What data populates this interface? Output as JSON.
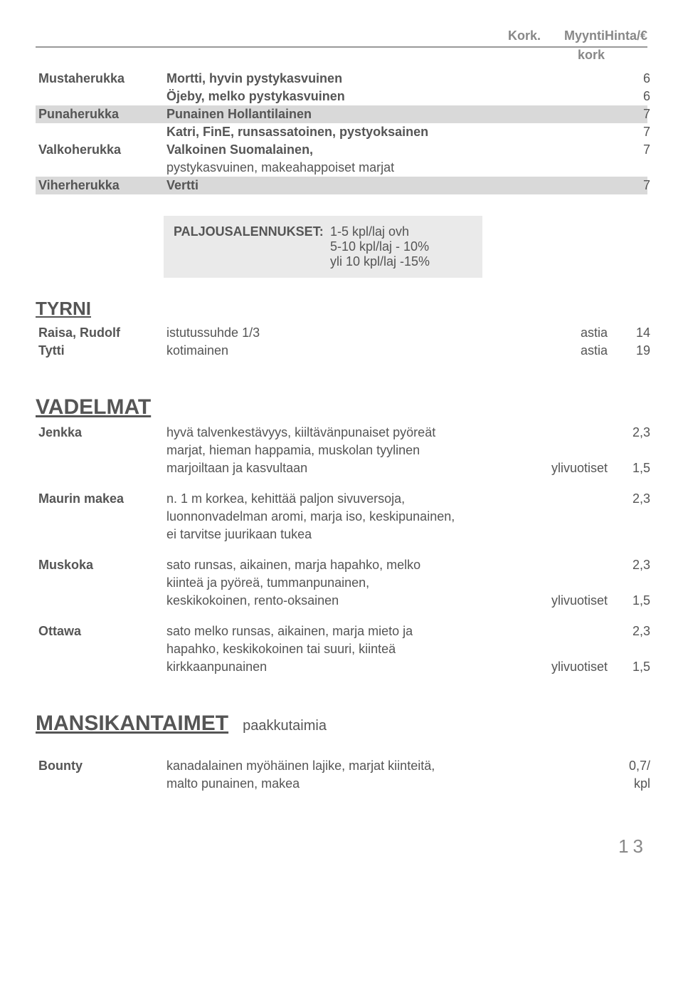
{
  "header": {
    "col3": "Kork.",
    "col4": "Myynti",
    "col5": "Hinta/€",
    "sub4": "kork"
  },
  "herukat": [
    {
      "shaded": false,
      "name": "Mustaherukka",
      "desc": "Mortti, hyvin pystykasvuinen",
      "c5": "6",
      "bold": true
    },
    {
      "shaded": false,
      "name": "",
      "desc": "Öjeby, melko pystykasvuinen",
      "c5": "6",
      "bold": true
    },
    {
      "shaded": true,
      "name": "Punaherukka",
      "desc": "Punainen Hollantilainen",
      "c5": "7",
      "bold": true
    },
    {
      "shaded": false,
      "name": "",
      "desc": "Katri, FinE, runsassatoinen, pystyoksainen",
      "c5": "7",
      "bold": true
    },
    {
      "shaded": false,
      "name": "Valkoherukka",
      "desc": "Valkoinen Suomalainen,",
      "c5": "7",
      "bold": true
    },
    {
      "shaded": false,
      "name": "",
      "desc": "pystykasvuinen, makeahappoiset marjat",
      "c5": "",
      "bold": false
    },
    {
      "shaded": true,
      "name": "Viherherukka",
      "desc": "Vertti",
      "c5": "7",
      "bold": true
    }
  ],
  "discount": {
    "label": "PALJOUSALENNUKSET:",
    "l1": "1-5 kpl/laj ovh",
    "l2": "5-10 kpl/laj - 10%",
    "l3": "yli 10 kpl/laj -15%"
  },
  "tyrni": {
    "title": "TYRNI",
    "rows": [
      {
        "name": "Raisa, Rudolf",
        "desc": "istutussuhde 1/3",
        "c4": "astia",
        "c5": "14"
      },
      {
        "name": "Tytti",
        "desc": "kotimainen",
        "c4": "astia",
        "c5": "19"
      }
    ]
  },
  "vadelmat": {
    "title": "VADELMAT",
    "rows": [
      {
        "name": "Jenkka",
        "desc": "hyvä talvenkestävyys, kiiltävänpunaiset pyöreät",
        "c4": "",
        "c5": "2,3"
      },
      {
        "name": "",
        "desc": "marjat, hieman happamia, muskolan tyylinen",
        "c4": "",
        "c5": ""
      },
      {
        "name": "",
        "desc": "marjoiltaan ja kasvultaan",
        "c4": "ylivuotiset",
        "c5": "1,5"
      },
      {
        "spacer": true
      },
      {
        "name": "Maurin makea",
        "desc": "n. 1 m korkea, kehittää paljon sivuversoja,",
        "c4": "",
        "c5": "2,3"
      },
      {
        "name": "",
        "desc": "luonnonvadelman aromi, marja iso, keskipunainen,",
        "c4": "",
        "c5": ""
      },
      {
        "name": "",
        "desc": "ei tarvitse juurikaan tukea",
        "c4": "",
        "c5": ""
      },
      {
        "spacer": true
      },
      {
        "name": "Muskoka",
        "desc": "sato runsas, aikainen, marja hapahko, melko",
        "c4": "",
        "c5": "2,3"
      },
      {
        "name": "",
        "desc": "kiinteä ja pyöreä, tummanpunainen,",
        "c4": "",
        "c5": ""
      },
      {
        "name": "",
        "desc": "keskikokoinen, rento-oksainen",
        "c4": "ylivuotiset",
        "c5": "1,5"
      },
      {
        "spacer": true
      },
      {
        "name": "Ottawa",
        "desc": "sato melko runsas, aikainen, marja mieto ja",
        "c4": "",
        "c5": "2,3"
      },
      {
        "name": "",
        "desc": "hapahko, keskikokoinen tai suuri, kiinteä",
        "c4": "",
        "c5": ""
      },
      {
        "name": "",
        "desc": "kirkkaanpunainen",
        "c4": "ylivuotiset",
        "c5": "1,5"
      }
    ]
  },
  "mansikka": {
    "title": "MANSIKANTAIMET",
    "sub": "paakkutaimia",
    "rows": [
      {
        "name": "Bounty",
        "desc": "kanadalainen myöhäinen lajike, marjat kiinteitä,",
        "c4": "",
        "c5": "0,7/"
      },
      {
        "name": "",
        "desc": "malto punainen, makea",
        "c4": "",
        "c5": "kpl"
      }
    ]
  },
  "pagenum": "13"
}
